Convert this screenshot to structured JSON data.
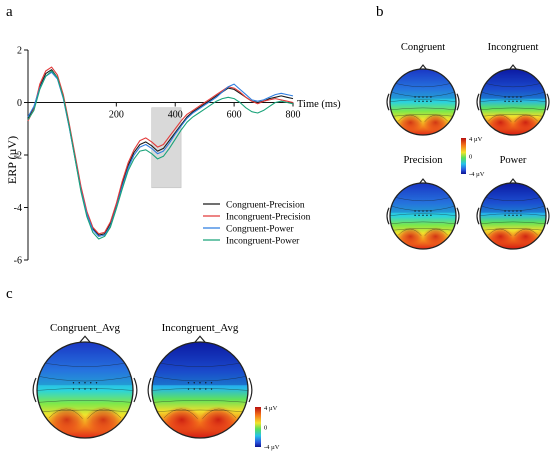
{
  "panels": {
    "a": "a",
    "b": "b",
    "c": "c"
  },
  "colors": {
    "congruent_precision": "#1a1a1a",
    "incongruent_precision": "#e23b3b",
    "congruent_power": "#2f7ee0",
    "incongruent_power": "#1aa37a",
    "highlight": "#d9d9d9"
  },
  "chart_data": [
    {
      "type": "line",
      "title": "",
      "xlabel": "Time (ms)",
      "ylabel": "ERP (µV)",
      "xlim": [
        -100,
        800
      ],
      "ylim": [
        -6,
        2
      ],
      "xticks": [
        200,
        400,
        600,
        800
      ],
      "xtick_labels": [
        "200",
        "400",
        "600",
        "800"
      ],
      "yticks": [
        -6,
        -4,
        -2,
        0,
        2
      ],
      "ytick_labels": [
        "-6",
        "-4",
        "-2",
        "0",
        "2"
      ],
      "highlight_window": [
        320,
        420
      ],
      "legend_position": "lower-right",
      "x": [
        -100,
        -80,
        -60,
        -40,
        -20,
        0,
        20,
        40,
        60,
        80,
        100,
        120,
        140,
        160,
        180,
        200,
        220,
        240,
        260,
        280,
        300,
        320,
        340,
        360,
        380,
        400,
        420,
        440,
        460,
        480,
        500,
        520,
        540,
        560,
        580,
        600,
        620,
        640,
        660,
        680,
        700,
        720,
        740,
        760,
        780,
        800
      ],
      "series": [
        {
          "name": "Congruent-Precision",
          "color_key": "congruent_precision",
          "values": [
            -0.6,
            -0.2,
            0.6,
            1.1,
            1.25,
            0.95,
            0.2,
            -0.9,
            -2.1,
            -3.3,
            -4.2,
            -4.8,
            -5.05,
            -5.0,
            -4.6,
            -3.9,
            -3.1,
            -2.4,
            -1.9,
            -1.6,
            -1.5,
            -1.65,
            -1.85,
            -1.75,
            -1.45,
            -1.15,
            -0.85,
            -0.55,
            -0.35,
            -0.2,
            -0.05,
            0.1,
            0.25,
            0.4,
            0.55,
            0.5,
            0.35,
            0.2,
            0.05,
            0.0,
            0.05,
            0.15,
            0.2,
            0.25,
            0.2,
            0.15
          ]
        },
        {
          "name": "Incongruent-Precision",
          "color_key": "incongruent_precision",
          "values": [
            -0.7,
            -0.25,
            0.7,
            1.2,
            1.35,
            1.05,
            0.3,
            -0.8,
            -2.0,
            -3.2,
            -4.15,
            -4.75,
            -5.0,
            -4.95,
            -4.55,
            -3.85,
            -3.0,
            -2.3,
            -1.8,
            -1.45,
            -1.35,
            -1.5,
            -1.7,
            -1.6,
            -1.3,
            -1.0,
            -0.7,
            -0.45,
            -0.3,
            -0.15,
            0.0,
            0.15,
            0.3,
            0.45,
            0.6,
            0.55,
            0.4,
            0.2,
            0.05,
            -0.05,
            0.05,
            0.1,
            0.15,
            0.1,
            0.05,
            0.0
          ]
        },
        {
          "name": "Congruent-Power",
          "color_key": "congruent_power",
          "values": [
            -0.55,
            -0.15,
            0.55,
            1.0,
            1.15,
            0.9,
            0.15,
            -0.95,
            -2.15,
            -3.35,
            -4.25,
            -4.85,
            -5.1,
            -5.05,
            -4.7,
            -4.0,
            -3.2,
            -2.5,
            -2.0,
            -1.7,
            -1.6,
            -1.75,
            -1.95,
            -1.85,
            -1.55,
            -1.2,
            -0.9,
            -0.6,
            -0.4,
            -0.25,
            -0.1,
            0.05,
            0.2,
            0.4,
            0.6,
            0.7,
            0.5,
            0.3,
            0.1,
            0.05,
            0.1,
            0.2,
            0.3,
            0.35,
            0.3,
            0.25
          ]
        },
        {
          "name": "Incongruent-Power",
          "color_key": "incongruent_power",
          "values": [
            -0.65,
            -0.3,
            0.5,
            1.0,
            1.2,
            0.95,
            0.2,
            -0.9,
            -2.15,
            -3.4,
            -4.35,
            -4.95,
            -5.2,
            -5.1,
            -4.75,
            -4.05,
            -3.3,
            -2.6,
            -2.15,
            -1.85,
            -1.8,
            -1.95,
            -2.15,
            -2.05,
            -1.75,
            -1.4,
            -1.05,
            -0.75,
            -0.55,
            -0.4,
            -0.25,
            -0.1,
            0.05,
            0.15,
            0.2,
            0.15,
            0.0,
            -0.2,
            -0.35,
            -0.4,
            -0.3,
            -0.15,
            0.0,
            0.05,
            0.0,
            -0.05
          ]
        }
      ]
    },
    {
      "type": "heatmap",
      "title": "",
      "subtype": "scalp topography",
      "maps": [
        {
          "label": "Congruent",
          "intensity": 0.35
        },
        {
          "label": "Incongruent",
          "intensity": 0.75
        },
        {
          "label": "Precision",
          "intensity": 0.4
        },
        {
          "label": "Power",
          "intensity": 0.6
        }
      ],
      "colorbar": {
        "max_label": "4 µV",
        "mid_label": "0",
        "min_label": "-4 µV",
        "range": [
          -4,
          4
        ]
      }
    },
    {
      "type": "heatmap",
      "title": "",
      "subtype": "scalp topography",
      "maps": [
        {
          "label": "Congruent_Avg",
          "intensity": 0.35
        },
        {
          "label": "Incongruent_Avg",
          "intensity": 0.8
        }
      ],
      "colorbar": {
        "max_label": "4 µV",
        "mid_label": "0",
        "min_label": "-4 µV",
        "range": [
          -4,
          4
        ]
      }
    }
  ]
}
